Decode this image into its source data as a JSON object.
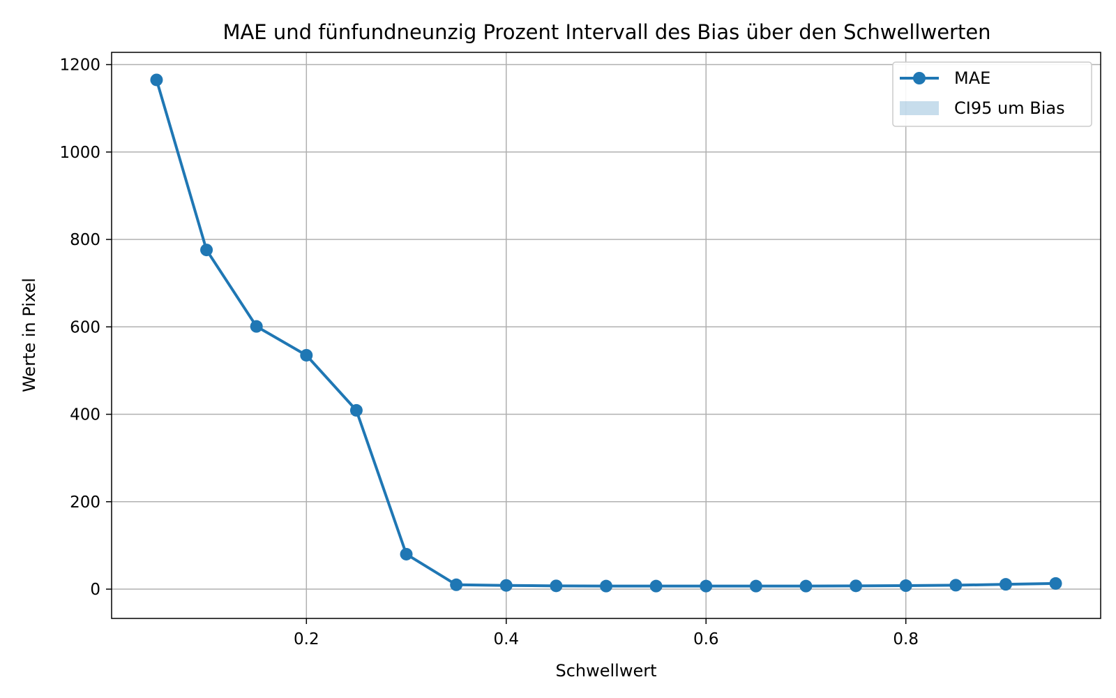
{
  "chart_data": {
    "type": "line",
    "title": "MAE und fünfundneunzig Prozent Intervall des Bias über den Schwellwerten",
    "xlabel": "Schwellwert",
    "ylabel": "Werte in Pixel",
    "xlim": [
      0.005,
      0.995
    ],
    "ylim": [
      -67,
      1228
    ],
    "xticks": [
      0.2,
      0.4,
      0.6,
      0.8
    ],
    "xtick_labels": [
      "0.2",
      "0.4",
      "0.6",
      "0.8"
    ],
    "yticks": [
      0,
      200,
      400,
      600,
      800,
      1000,
      1200
    ],
    "ytick_labels": [
      "0",
      "200",
      "400",
      "600",
      "800",
      "1000",
      "1200"
    ],
    "grid": true,
    "legend_position": "top-right",
    "x": [
      0.05,
      0.1,
      0.15,
      0.2,
      0.25,
      0.3,
      0.35,
      0.4,
      0.45,
      0.5,
      0.55,
      0.6,
      0.65,
      0.7,
      0.75,
      0.8,
      0.85,
      0.9,
      0.95
    ],
    "series": [
      {
        "name": "MAE",
        "values": [
          1165,
          776,
          601,
          535,
          409,
          80,
          10,
          8.5,
          7.5,
          7,
          7,
          7,
          7,
          7,
          7.5,
          8,
          9,
          11,
          13
        ],
        "color": "#1f77b4"
      }
    ],
    "legend": [
      {
        "label": "MAE",
        "kind": "line-marker",
        "color": "#1f77b4"
      },
      {
        "label": "CI95 um Bias",
        "kind": "band",
        "color": "#1f77b4"
      }
    ]
  }
}
